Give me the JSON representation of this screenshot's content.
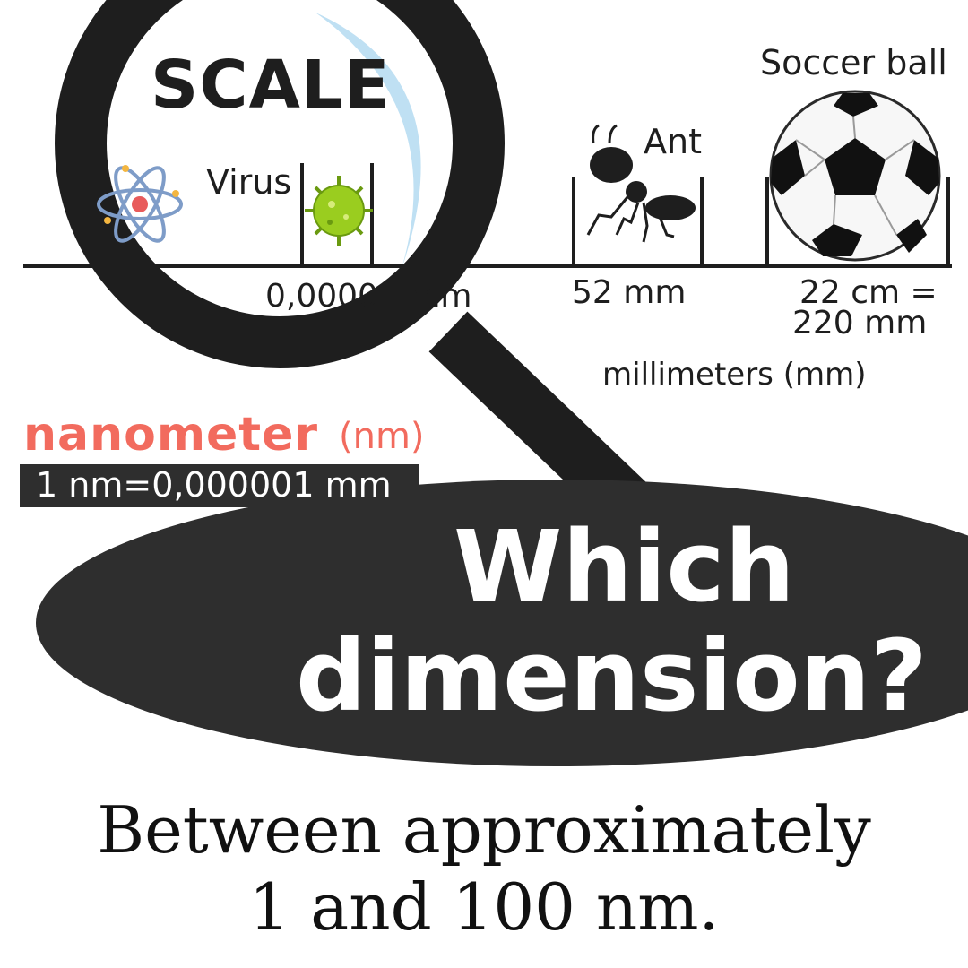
{
  "title": "SCALE",
  "scale": {
    "virus": {
      "label": "Virus",
      "measure": "0,00001 mm"
    },
    "ant": {
      "label": "Ant",
      "measure": "52 mm"
    },
    "ball": {
      "label": "Soccer ball",
      "measure_line1": "22 cm =",
      "measure_line2": "220 mm"
    },
    "unit": "millimeters (mm)"
  },
  "nanometer": {
    "word": "nanometer",
    "abbr": "(nm)",
    "definition": "1 nm=0,000001 mm"
  },
  "question": {
    "line1": "Which",
    "line2": "dimension?"
  },
  "answer": {
    "line1": "Between approximately",
    "line2": "1 and 100 nm."
  },
  "colors": {
    "accent": "#f26b5e",
    "dark": "#2e2e2e",
    "lens_glare": "#bfe0f3",
    "virus": "#9acd1f"
  },
  "icons": [
    "atom-icon",
    "virus-icon",
    "ant-icon",
    "soccer-ball-icon",
    "magnifier-icon"
  ]
}
